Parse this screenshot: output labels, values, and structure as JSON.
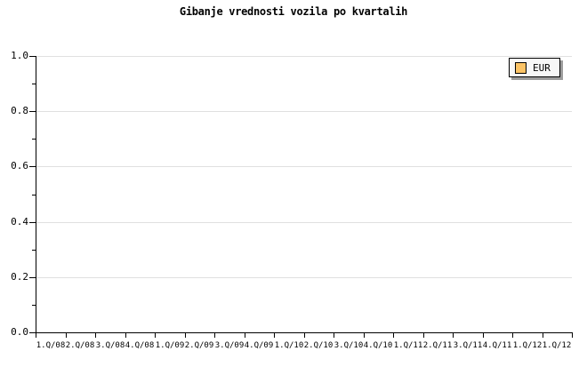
{
  "title": "Gibanje vrednosti vozila po kvartalih",
  "legend": {
    "position": "top-right",
    "items": [
      {
        "label": "EUR",
        "color": "#FBC366"
      }
    ]
  },
  "chart_data": {
    "type": "line",
    "title": "Gibanje vrednosti vozila po kvartalih",
    "categories": [
      "1.Q/08",
      "2.Q/08",
      "3.Q/08",
      "4.Q/08",
      "1.Q/09",
      "2.Q/09",
      "3.Q/09",
      "4.Q/09",
      "1.Q/10",
      "2.Q/10",
      "3.Q/10",
      "4.Q/10",
      "1.Q/11",
      "2.Q/11",
      "3.Q/11",
      "4.Q/11",
      "1.Q/12",
      "1.Q/12"
    ],
    "series": [
      {
        "name": "EUR",
        "color": "#FBC366",
        "values": []
      }
    ],
    "xlabel": "",
    "ylabel": "",
    "ylim": [
      0,
      1
    ],
    "y_tick_values": [
      0,
      0.2,
      0.4,
      0.6,
      0.8,
      1
    ],
    "y_tick_labels": [
      "0.0",
      "0.2",
      "0.4",
      "0.6",
      "0.8",
      "1.0"
    ],
    "y_minor_step": 0.1,
    "grid": "horizontal-major",
    "grid_color": "#E0E0E0",
    "axis_color": "#000000",
    "legend_position": "top-right"
  }
}
